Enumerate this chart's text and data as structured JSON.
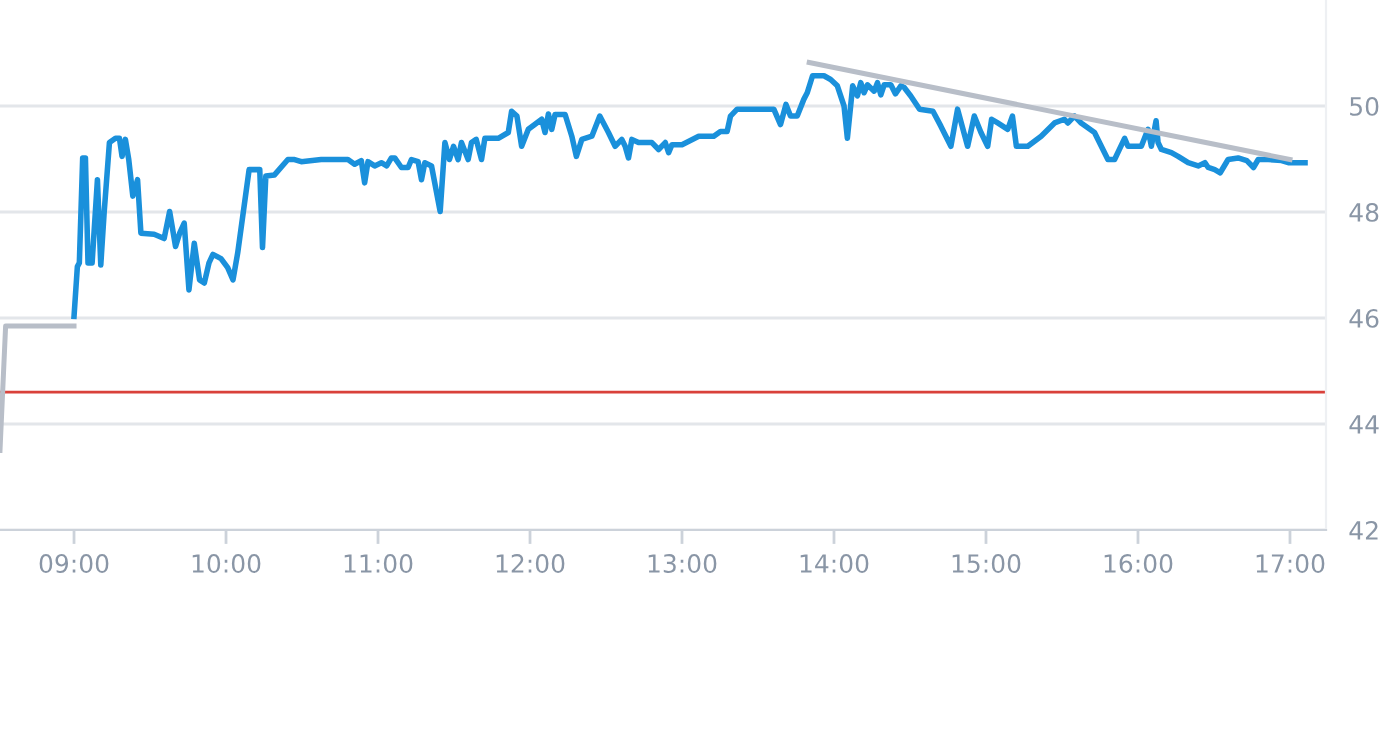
{
  "chart_data": {
    "type": "line",
    "xlim": [
      8.513,
      17.237
    ],
    "xticks": [
      {
        "value": 9,
        "label": "09:00"
      },
      {
        "value": 10,
        "label": "10:00"
      },
      {
        "value": 11,
        "label": "11:00"
      },
      {
        "value": 12,
        "label": "12:00"
      },
      {
        "value": 13,
        "label": "13:00"
      },
      {
        "value": 14,
        "label": "14:00"
      },
      {
        "value": 15,
        "label": "15:00"
      },
      {
        "value": 16,
        "label": "16:00"
      },
      {
        "value": 17,
        "label": "17:00"
      }
    ],
    "ylim": [
      42,
      52
    ],
    "yticks": [
      42,
      44,
      46,
      48,
      50
    ],
    "grid": "y",
    "marker": "none",
    "line_style": "solid",
    "ref_lines": [
      {
        "axis": "y",
        "value": 44.6,
        "color": "#d9413a"
      }
    ],
    "series": [
      {
        "color": "#b8bec8",
        "x": [
          8.513,
          8.55,
          9.0
        ],
        "values": [
          43.5,
          45.85,
          45.85
        ]
      },
      {
        "color": "#1a90db",
        "x": [
          9.0,
          9.022,
          9.035,
          9.057,
          9.075,
          9.092,
          9.119,
          9.154,
          9.176,
          9.198,
          9.233,
          9.273,
          9.299,
          9.316,
          9.338,
          9.36,
          9.387,
          9.418,
          9.44,
          9.527,
          9.593,
          9.629,
          9.668,
          9.695,
          9.725,
          9.756,
          9.791,
          9.826,
          9.857,
          9.888,
          9.914,
          9.967,
          10.011,
          10.046,
          10.077,
          10.152,
          10.222,
          10.24,
          10.262,
          10.319,
          10.407,
          10.451,
          10.495,
          10.626,
          10.802,
          10.846,
          10.89,
          10.912,
          10.934,
          10.978,
          11.022,
          11.057,
          11.088,
          11.11,
          11.154,
          11.198,
          11.22,
          11.264,
          11.286,
          11.308,
          11.352,
          11.409,
          11.44,
          11.47,
          11.497,
          11.527,
          11.549,
          11.593,
          11.615,
          11.646,
          11.681,
          11.703,
          11.791,
          11.857,
          11.879,
          11.914,
          11.945,
          11.989,
          12.077,
          12.099,
          12.121,
          12.143,
          12.165,
          12.231,
          12.275,
          12.305,
          12.341,
          12.407,
          12.459,
          12.516,
          12.56,
          12.604,
          12.626,
          12.648,
          12.67,
          12.714,
          12.802,
          12.846,
          12.89,
          12.912,
          12.934,
          13.0,
          13.11,
          13.143,
          13.209,
          13.253,
          13.297,
          13.319,
          13.363,
          13.604,
          13.648,
          13.684,
          13.714,
          13.758,
          13.802,
          13.824,
          13.859,
          13.89,
          13.934,
          13.978,
          14.022,
          14.066,
          14.088,
          14.123,
          14.154,
          14.176,
          14.198,
          14.22,
          14.264,
          14.286,
          14.308,
          14.33,
          14.374,
          14.404,
          14.44,
          14.462,
          14.505,
          14.563,
          14.651,
          14.703,
          14.769,
          14.813,
          14.879,
          14.923,
          14.967,
          15.011,
          15.037,
          15.077,
          15.143,
          15.174,
          15.2,
          15.275,
          15.363,
          15.451,
          15.516,
          15.538,
          15.582,
          15.626,
          15.714,
          15.802,
          15.846,
          15.912,
          15.934,
          16.022,
          16.066,
          16.088,
          16.119,
          16.132,
          16.154,
          16.22,
          16.264,
          16.33,
          16.396,
          16.44,
          16.462,
          16.505,
          16.541,
          16.593,
          16.659,
          16.716,
          16.76,
          16.791,
          16.857,
          16.945,
          16.989,
          17.099
        ],
        "values": [
          46.03,
          46.97,
          47.04,
          49.02,
          49.02,
          47.04,
          47.04,
          48.61,
          47.0,
          47.98,
          49.31,
          49.39,
          49.39,
          49.05,
          49.37,
          48.99,
          48.3,
          48.61,
          47.6,
          47.58,
          47.5,
          48.01,
          47.35,
          47.6,
          47.79,
          46.53,
          47.41,
          46.72,
          46.66,
          47.04,
          47.2,
          47.12,
          46.95,
          46.72,
          47.23,
          48.8,
          48.8,
          47.33,
          48.68,
          48.7,
          48.99,
          48.99,
          48.95,
          48.99,
          48.99,
          48.9,
          48.97,
          48.55,
          48.95,
          48.87,
          48.93,
          48.87,
          49.02,
          49.02,
          48.84,
          48.84,
          48.99,
          48.95,
          48.61,
          48.93,
          48.87,
          48.01,
          49.31,
          48.99,
          49.24,
          48.99,
          49.31,
          48.99,
          49.31,
          49.37,
          48.99,
          49.39,
          49.39,
          49.5,
          49.9,
          49.81,
          49.24,
          49.56,
          49.75,
          49.5,
          49.85,
          49.56,
          49.84,
          49.84,
          49.43,
          49.05,
          49.37,
          49.43,
          49.81,
          49.5,
          49.24,
          49.37,
          49.24,
          49.02,
          49.37,
          49.31,
          49.31,
          49.18,
          49.31,
          49.12,
          49.27,
          49.27,
          49.43,
          49.43,
          49.43,
          49.52,
          49.52,
          49.81,
          49.94,
          49.94,
          49.65,
          50.03,
          49.81,
          49.81,
          50.13,
          50.25,
          50.57,
          50.57,
          50.57,
          50.5,
          50.38,
          50.0,
          49.39,
          50.38,
          50.19,
          50.44,
          50.25,
          50.4,
          50.28,
          50.44,
          50.21,
          50.4,
          50.4,
          50.23,
          50.38,
          50.35,
          50.19,
          49.94,
          49.9,
          49.62,
          49.24,
          49.94,
          49.24,
          49.81,
          49.5,
          49.24,
          49.75,
          49.68,
          49.56,
          49.81,
          49.24,
          49.24,
          49.43,
          49.68,
          49.75,
          49.68,
          49.81,
          49.68,
          49.5,
          48.99,
          48.99,
          49.39,
          49.24,
          49.24,
          49.56,
          49.24,
          49.72,
          49.31,
          49.18,
          49.12,
          49.05,
          48.93,
          48.87,
          48.93,
          48.84,
          48.8,
          48.74,
          48.99,
          49.02,
          48.97,
          48.84,
          48.99,
          48.99,
          48.97,
          48.93,
          48.93
        ]
      },
      {
        "color": "#b8bec8",
        "x": [
          13.837,
          17.0
        ],
        "values": [
          50.82,
          48.99
        ]
      }
    ]
  }
}
